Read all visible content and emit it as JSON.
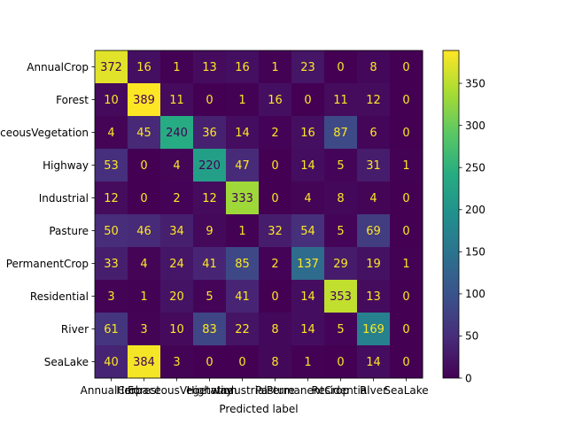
{
  "chart_data": {
    "type": "heatmap",
    "title": "",
    "xlabel": "Predicted label",
    "ylabel": "",
    "x_categories": [
      "AnnualCrop",
      "Forest",
      "HerbaceousVegetation",
      "Highway",
      "Industrial",
      "Pasture",
      "PermanentCrop",
      "Residential",
      "River",
      "SeaLake"
    ],
    "y_categories": [
      "AnnualCrop",
      "Forest",
      "HerbaceousVegetation",
      "Highway",
      "Industrial",
      "Pasture",
      "PermanentCrop",
      "Residential",
      "River",
      "SeaLake"
    ],
    "values": [
      [
        372,
        16,
        1,
        13,
        16,
        1,
        23,
        0,
        8,
        0
      ],
      [
        10,
        389,
        11,
        0,
        1,
        16,
        0,
        11,
        12,
        0
      ],
      [
        4,
        45,
        240,
        36,
        14,
        2,
        16,
        87,
        6,
        0
      ],
      [
        53,
        0,
        4,
        220,
        47,
        0,
        14,
        5,
        31,
        1
      ],
      [
        12,
        0,
        2,
        12,
        333,
        0,
        4,
        8,
        4,
        0
      ],
      [
        50,
        46,
        34,
        9,
        1,
        32,
        54,
        5,
        69,
        0
      ],
      [
        33,
        4,
        24,
        41,
        85,
        2,
        137,
        29,
        19,
        1
      ],
      [
        3,
        1,
        20,
        5,
        41,
        0,
        14,
        353,
        13,
        0
      ],
      [
        61,
        3,
        10,
        83,
        22,
        8,
        14,
        5,
        169,
        0
      ],
      [
        40,
        384,
        3,
        0,
        0,
        8,
        1,
        0,
        14,
        0
      ]
    ],
    "colormap": "viridis",
    "vmin": 0,
    "vmax": 389,
    "colorbar_ticks": [
      0,
      50,
      100,
      150,
      200,
      250,
      300,
      350
    ],
    "colorbar_tick_labels": [
      "0",
      "50",
      "100",
      "150",
      "200",
      "250",
      "300",
      "350"
    ],
    "text_color_light": "#fde725",
    "text_color_dark": "#440154"
  }
}
